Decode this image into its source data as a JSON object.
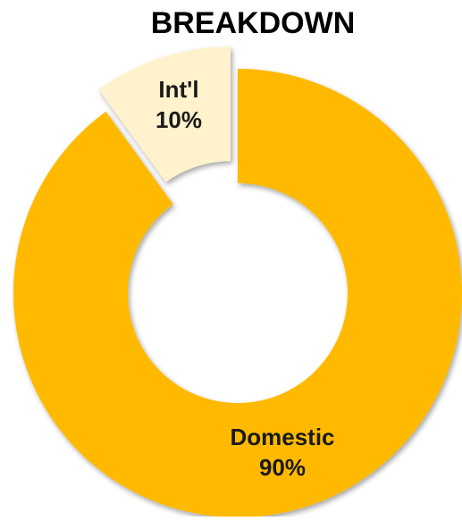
{
  "chart_data": {
    "type": "pie",
    "title": "BREAKDOWN",
    "donut": true,
    "slices": [
      {
        "name": "Domestic",
        "value": 90,
        "label": "90%",
        "color": "#FFBA00"
      },
      {
        "name": "Int'l",
        "value": 10,
        "label": "10%",
        "color": "#FFF2CC",
        "exploded": true
      }
    ],
    "legend": "none"
  }
}
